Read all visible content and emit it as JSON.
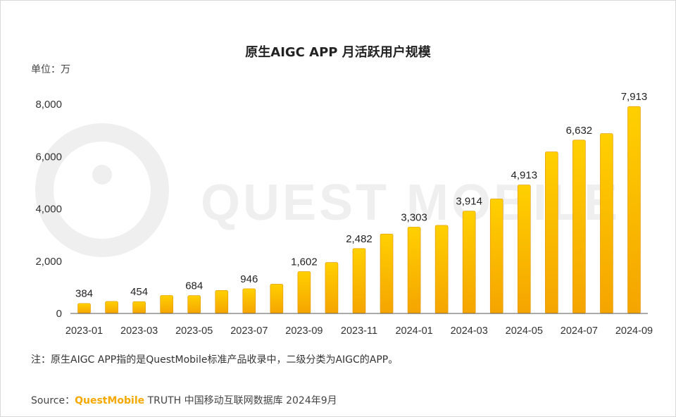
{
  "title": "原生AIGC APP 月活跃用户规模",
  "unit_label": "单位：万",
  "note": "注：原生AIGC APP指的是QuestMobile标准产品收录中，二级分类为AIGC的APP。",
  "source": {
    "prefix": "Source：",
    "brand": "QuestMobile",
    "rest": " TRUTH 中国移动互联网数据库 2024年9月"
  },
  "watermark": "QUEST MOBILE",
  "colors": {
    "bar_top": "#ffd000",
    "bar_bottom": "#f5a400",
    "bar_edge": "#e09400",
    "axis": "#555555",
    "watermark": "#efefef"
  },
  "chart_data": {
    "type": "bar",
    "title": "原生AIGC APP 月活跃用户规模",
    "ylabel": "单位：万",
    "ylim": [
      0,
      8000
    ],
    "yticks": [
      0,
      2000,
      4000,
      6000,
      8000
    ],
    "ytick_labels": [
      "0",
      "2,000",
      "4,000",
      "6,000",
      "8,000"
    ],
    "grid": false,
    "categories": [
      "2023-01",
      "2023-02",
      "2023-03",
      "2023-04",
      "2023-05",
      "2023-06",
      "2023-07",
      "2023-08",
      "2023-09",
      "2023-10",
      "2023-11",
      "2023-12",
      "2024-01",
      "2024-02",
      "2024-03",
      "2024-04",
      "2024-05",
      "2024-06",
      "2024-07",
      "2024-08",
      "2024-09"
    ],
    "xtick_labels": [
      "2023-01",
      "",
      "2023-03",
      "",
      "2023-05",
      "",
      "2023-07",
      "",
      "2023-09",
      "",
      "2023-11",
      "",
      "2024-01",
      "",
      "2024-03",
      "",
      "2024-05",
      "",
      "2024-07",
      "",
      "2024-09"
    ],
    "values": [
      384,
      460,
      454,
      690,
      684,
      880,
      946,
      1120,
      1602,
      1950,
      2482,
      3040,
      3303,
      3370,
      3914,
      4380,
      4913,
      6180,
      6632,
      6880,
      7913
    ],
    "data_labels": [
      "384",
      "",
      "454",
      "",
      "684",
      "",
      "946",
      "",
      "1,602",
      "",
      "2,482",
      "",
      "3,303",
      "",
      "3,914",
      "",
      "4,913",
      "",
      "6,632",
      "",
      "7,913"
    ]
  }
}
